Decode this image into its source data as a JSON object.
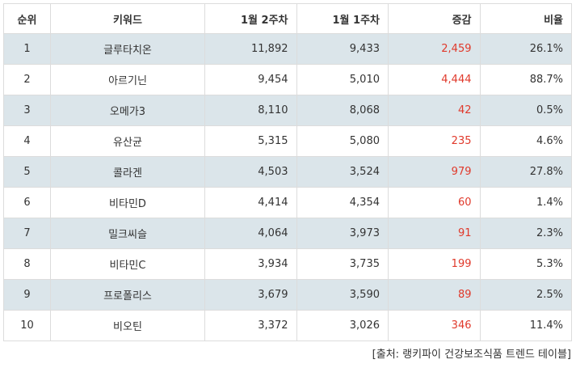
{
  "header": {
    "rank": "순위",
    "keyword": "키워드",
    "week2": "1월 2주차",
    "week1": "1월 1주차",
    "change": "증감",
    "ratio": "비율"
  },
  "rows": [
    {
      "rank": "1",
      "keyword": "글루타치온",
      "week2": "11,892",
      "week1": "9,433",
      "change": "2,459",
      "ratio": "26.1%"
    },
    {
      "rank": "2",
      "keyword": "아르기닌",
      "week2": "9,454",
      "week1": "5,010",
      "change": "4,444",
      "ratio": "88.7%"
    },
    {
      "rank": "3",
      "keyword": "오메가3",
      "week2": "8,110",
      "week1": "8,068",
      "change": "42",
      "ratio": "0.5%"
    },
    {
      "rank": "4",
      "keyword": "유산균",
      "week2": "5,315",
      "week1": "5,080",
      "change": "235",
      "ratio": "4.6%"
    },
    {
      "rank": "5",
      "keyword": "콜라겐",
      "week2": "4,503",
      "week1": "3,524",
      "change": "979",
      "ratio": "27.8%"
    },
    {
      "rank": "6",
      "keyword": "비타민D",
      "week2": "4,414",
      "week1": "4,354",
      "change": "60",
      "ratio": "1.4%"
    },
    {
      "rank": "7",
      "keyword": "밀크씨슬",
      "week2": "4,064",
      "week1": "3,973",
      "change": "91",
      "ratio": "2.3%"
    },
    {
      "rank": "8",
      "keyword": "비타민C",
      "week2": "3,934",
      "week1": "3,735",
      "change": "199",
      "ratio": "5.3%"
    },
    {
      "rank": "9",
      "keyword": "프로폴리스",
      "week2": "3,679",
      "week1": "3,590",
      "change": "89",
      "ratio": "2.5%"
    },
    {
      "rank": "10",
      "keyword": "비오틴",
      "week2": "3,372",
      "week1": "3,026",
      "change": "346",
      "ratio": "11.4%"
    }
  ],
  "source": "[출처: 랭키파이 건강보조식품 트렌드 테이블]",
  "colors": {
    "stripe": "#dbe5ea",
    "positive_change": "#e0392b",
    "border": "#dcdcdc"
  }
}
